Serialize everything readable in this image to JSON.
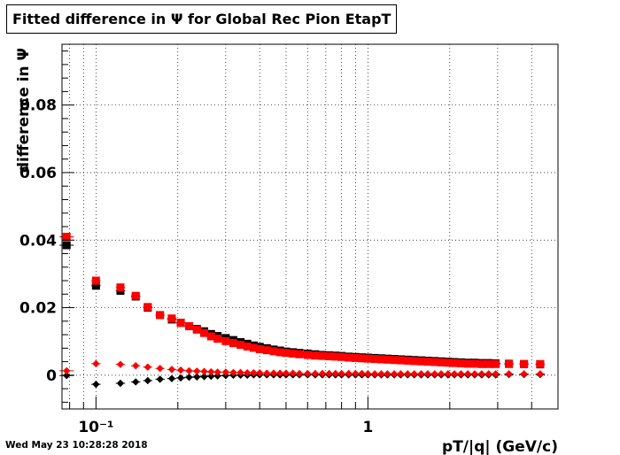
{
  "title": "Fitted difference in  Ψ  for Global Rec Pion EtapT",
  "timestamp": "Wed May 23 10:28:28 2018",
  "chart_data": {
    "type": "scatter",
    "title": "Fitted difference in  Ψ  for Global Rec Pion EtapT",
    "xlabel": "pT/|q| (GeV/c)",
    "ylabel": "difference in  Ψ",
    "x_scale": "log",
    "xlim": [
      0.075,
      5.0
    ],
    "ylim": [
      -0.01,
      0.098
    ],
    "grid": true,
    "x_tick_labels": [
      "10⁻¹",
      "1"
    ],
    "y_tick_labels": [
      "0",
      "0.02",
      "0.04",
      "0.06",
      "0.08"
    ],
    "series": [
      {
        "color": "#000000",
        "marker": "square",
        "x": [
          0.078,
          0.1,
          0.123,
          0.14,
          0.155,
          0.172,
          0.19,
          0.205,
          0.22,
          0.235,
          0.25,
          0.265,
          0.28,
          0.3,
          0.32,
          0.34,
          0.36,
          0.38,
          0.4,
          0.425,
          0.45,
          0.475,
          0.5,
          0.53,
          0.56,
          0.6,
          0.64,
          0.68,
          0.72,
          0.76,
          0.8,
          0.85,
          0.9,
          0.95,
          1.0,
          1.06,
          1.12,
          1.18,
          1.25,
          1.32,
          1.4,
          1.48,
          1.57,
          1.66,
          1.76,
          1.86,
          1.97,
          2.08,
          2.2,
          2.33,
          2.47,
          2.62,
          2.78,
          2.95,
          3.3,
          3.75,
          4.3
        ],
        "y": [
          0.0385,
          0.0265,
          0.025,
          0.0233,
          0.02,
          0.0178,
          0.0165,
          0.0155,
          0.0145,
          0.0137,
          0.013,
          0.0122,
          0.0116,
          0.011,
          0.0104,
          0.0098,
          0.0093,
          0.0088,
          0.0084,
          0.008,
          0.0076,
          0.0073,
          0.007,
          0.0068,
          0.0066,
          0.0064,
          0.0062,
          0.006,
          0.0059,
          0.0058,
          0.0057,
          0.0055,
          0.0054,
          0.0053,
          0.0052,
          0.0051,
          0.005,
          0.0049,
          0.0048,
          0.0047,
          0.0046,
          0.0045,
          0.0044,
          0.0043,
          0.0042,
          0.0041,
          0.004,
          0.0039,
          0.0038,
          0.0037,
          0.0037,
          0.0036,
          0.0036,
          0.0035,
          0.0034,
          0.0033,
          0.0032
        ]
      },
      {
        "color": "#ff0000",
        "marker": "square",
        "x": [
          0.078,
          0.1,
          0.123,
          0.14,
          0.155,
          0.172,
          0.19,
          0.205,
          0.22,
          0.235,
          0.25,
          0.265,
          0.28,
          0.3,
          0.32,
          0.34,
          0.36,
          0.38,
          0.4,
          0.425,
          0.45,
          0.475,
          0.5,
          0.53,
          0.56,
          0.6,
          0.64,
          0.68,
          0.72,
          0.76,
          0.8,
          0.85,
          0.9,
          0.95,
          1.0,
          1.06,
          1.12,
          1.18,
          1.25,
          1.32,
          1.4,
          1.48,
          1.57,
          1.66,
          1.76,
          1.86,
          1.97,
          2.08,
          2.2,
          2.33,
          2.47,
          2.62,
          2.78,
          2.95,
          3.3,
          3.75,
          4.3
        ],
        "y": [
          0.041,
          0.028,
          0.026,
          0.0235,
          0.0202,
          0.0178,
          0.0168,
          0.0155,
          0.0145,
          0.0135,
          0.0125,
          0.0115,
          0.0108,
          0.0101,
          0.0095,
          0.009,
          0.0085,
          0.0081,
          0.0077,
          0.0074,
          0.0071,
          0.0068,
          0.0066,
          0.0064,
          0.0062,
          0.006,
          0.0058,
          0.0057,
          0.0056,
          0.0055,
          0.0054,
          0.0052,
          0.0051,
          0.005,
          0.0049,
          0.0048,
          0.0047,
          0.0046,
          0.0045,
          0.0044,
          0.0043,
          0.0042,
          0.0041,
          0.004,
          0.0039,
          0.0038,
          0.0037,
          0.0036,
          0.0035,
          0.0034,
          0.0034,
          0.0033,
          0.0033,
          0.0033,
          0.0033,
          0.0033,
          0.0033
        ]
      },
      {
        "color": "#000000",
        "marker": "diamond",
        "x": [
          0.078,
          0.1,
          0.123,
          0.14,
          0.155,
          0.172,
          0.19,
          0.205,
          0.22,
          0.235,
          0.25,
          0.265,
          0.28,
          0.3,
          0.32,
          0.34,
          0.36,
          0.38,
          0.4,
          0.425,
          0.45,
          0.475,
          0.5,
          0.53,
          0.56,
          0.6,
          0.64,
          0.68,
          0.72,
          0.76,
          0.8,
          0.85,
          0.9,
          0.95,
          1.0,
          1.06,
          1.12,
          1.18,
          1.25,
          1.32,
          1.4,
          1.48,
          1.57,
          1.66,
          1.76,
          1.86,
          1.97,
          2.08,
          2.2,
          2.33,
          2.47,
          2.62,
          2.78,
          2.95,
          3.3,
          3.75,
          4.3
        ],
        "y": [
          -0.0001,
          -0.0027,
          -0.0024,
          -0.002,
          -0.0016,
          -0.0012,
          -0.001,
          -0.0008,
          -0.0006,
          -0.0005,
          -0.0004,
          -0.0003,
          -0.0002,
          -0.0001,
          0.0,
          0.0,
          0.0,
          0.0001,
          0.0001,
          0.0001,
          0.0001,
          0.0001,
          0.0001,
          0.0001,
          0.0001,
          0.0001,
          0.0001,
          0.0001,
          0.0001,
          0.0001,
          0.0001,
          0.0001,
          0.0001,
          0.0001,
          0.0001,
          0.0001,
          0.0001,
          0.0001,
          0.0001,
          0.0001,
          0.0001,
          0.0001,
          0.0001,
          0.0001,
          0.0001,
          0.0001,
          0.0001,
          0.0001,
          0.0001,
          0.0001,
          0.0001,
          0.0001,
          0.0001,
          0.0001,
          0.0002,
          0.0002,
          0.0002
        ]
      },
      {
        "color": "#ff0000",
        "marker": "diamond",
        "x": [
          0.078,
          0.1,
          0.123,
          0.14,
          0.155,
          0.172,
          0.19,
          0.205,
          0.22,
          0.235,
          0.25,
          0.265,
          0.28,
          0.3,
          0.32,
          0.34,
          0.36,
          0.38,
          0.4,
          0.425,
          0.45,
          0.475,
          0.5,
          0.53,
          0.56,
          0.6,
          0.64,
          0.68,
          0.72,
          0.76,
          0.8,
          0.85,
          0.9,
          0.95,
          1.0,
          1.06,
          1.12,
          1.18,
          1.25,
          1.32,
          1.4,
          1.48,
          1.57,
          1.66,
          1.76,
          1.86,
          1.97,
          2.08,
          2.2,
          2.33,
          2.47,
          2.62,
          2.78,
          2.95,
          3.3,
          3.75,
          4.3
        ],
        "y": [
          0.0013,
          0.0034,
          0.0032,
          0.0028,
          0.0024,
          0.002,
          0.0017,
          0.0015,
          0.0013,
          0.0012,
          0.0011,
          0.001,
          0.0009,
          0.0009,
          0.0008,
          0.0008,
          0.0007,
          0.0007,
          0.0007,
          0.0006,
          0.0006,
          0.0006,
          0.0006,
          0.0006,
          0.0005,
          0.0005,
          0.0005,
          0.0005,
          0.0005,
          0.0005,
          0.0005,
          0.0005,
          0.0005,
          0.0005,
          0.0004,
          0.0004,
          0.0004,
          0.0004,
          0.0004,
          0.0004,
          0.0004,
          0.0004,
          0.0004,
          0.0004,
          0.0004,
          0.0004,
          0.0004,
          0.0004,
          0.0004,
          0.0004,
          0.0004,
          0.0004,
          0.0004,
          0.0004,
          0.0004,
          0.0004,
          0.0004
        ]
      }
    ]
  }
}
